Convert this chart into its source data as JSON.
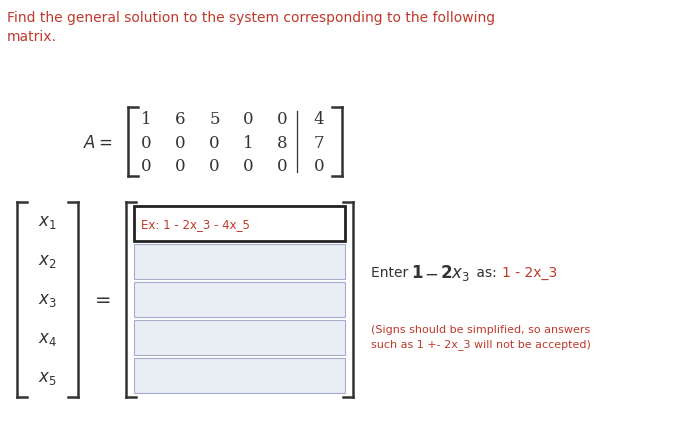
{
  "title_line1": "Find the general solution to the system corresponding to the following",
  "title_line2": "matrix.",
  "title_color": "#c0392b",
  "dark_color": "#333333",
  "matrix_rows": [
    [
      "1",
      "6",
      "5",
      "0",
      "0",
      "4"
    ],
    [
      "0",
      "0",
      "0",
      "1",
      "8",
      "7"
    ],
    [
      "0",
      "0",
      "0",
      "0",
      "0",
      "0"
    ]
  ],
  "input_placeholder": "Ex: 1 - 2x_3 - 4x_5",
  "hint_color": "#333333",
  "orange_color": "#c0392b",
  "input_bg_color": "#e8eef4",
  "bg_color": "#ffffff",
  "box_border_color": "#222222",
  "input_border_color": "#aaaacc"
}
